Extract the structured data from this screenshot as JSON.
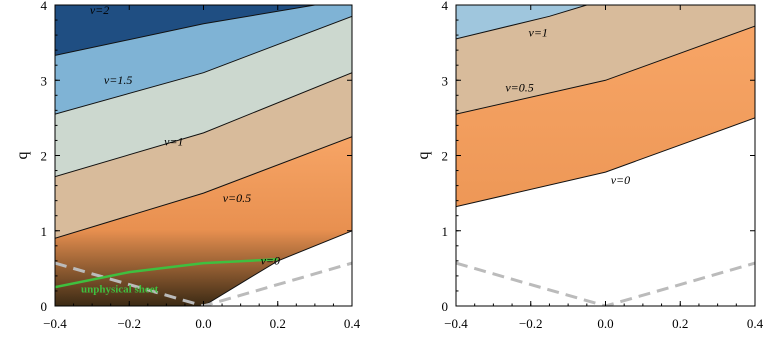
{
  "chart_data": [
    {
      "type": "contour",
      "xlim": [
        -0.4,
        0.4
      ],
      "ylim": [
        0,
        4
      ],
      "x_ticks": [
        "−0.4",
        "−0.2",
        "0.0",
        "0.2",
        "0.4"
      ],
      "y_ticks": [
        "0",
        "1",
        "2",
        "3",
        "4"
      ],
      "xlabel": "",
      "ylabel": "q",
      "contours": [
        {
          "label": "ν=0",
          "points": [
            [
              0.0,
              0.0
            ],
            [
              0.1,
              0.3
            ],
            [
              0.2,
              0.6
            ],
            [
              0.4,
              1.0
            ]
          ]
        },
        {
          "label": "ν=0.5",
          "points": [
            [
              -0.4,
              0.9
            ],
            [
              0.0,
              1.5
            ],
            [
              0.4,
              2.25
            ]
          ]
        },
        {
          "label": "ν=1",
          "points": [
            [
              -0.4,
              1.72
            ],
            [
              0.0,
              2.3
            ],
            [
              0.4,
              3.1
            ]
          ]
        },
        {
          "label": "ν=1.5",
          "points": [
            [
              -0.4,
              2.55
            ],
            [
              0.0,
              3.1
            ],
            [
              0.4,
              3.85
            ]
          ]
        },
        {
          "label": "ν=2",
          "points": [
            [
              -0.4,
              3.33
            ],
            [
              0.0,
              3.75
            ],
            [
              0.3,
              4.0
            ]
          ]
        }
      ],
      "contour_label_pos": {
        "ν=0": [
          0.18,
          0.55
        ],
        "ν=0.5": [
          0.09,
          1.38
        ],
        "ν=1": [
          -0.08,
          2.13
        ],
        "ν=1.5": [
          -0.23,
          2.95
        ],
        "ν=2": [
          -0.28,
          3.88
        ]
      },
      "bands": [
        {
          "between": [
            "floor",
            "ν=0"
          ],
          "color": "#1a1a12"
        },
        {
          "between": [
            "ν=0",
            "ν=0.5"
          ],
          "color": "#f5a262"
        },
        {
          "between": [
            "ν=0.5",
            "ν=1"
          ],
          "color": "#d8bb9b"
        },
        {
          "between": [
            "ν=1",
            "ν=1.5"
          ],
          "color": "#ccd8cf"
        },
        {
          "between": [
            "ν=1.5",
            "ν=2"
          ],
          "color": "#7fb3d5"
        },
        {
          "between": [
            "ν=2",
            "ceiling"
          ],
          "color": "#1f4e82"
        }
      ],
      "dashed_boundary": {
        "color": "#bbbbbb",
        "points": [
          [
            -0.4,
            0.57
          ],
          [
            0.0,
            0.0
          ],
          [
            0.4,
            0.57
          ]
        ]
      },
      "annotation": {
        "text": "unphysical sheet",
        "color": "#3fbf3f",
        "curve": [
          [
            -0.4,
            0.25
          ],
          [
            -0.2,
            0.45
          ],
          [
            0.0,
            0.57
          ],
          [
            0.2,
            0.62
          ]
        ]
      }
    },
    {
      "type": "contour",
      "xlim": [
        -0.4,
        0.4
      ],
      "ylim": [
        0,
        4
      ],
      "x_ticks": [
        "−0.4",
        "−0.2",
        "0.0",
        "0.2",
        "0.4"
      ],
      "y_ticks": [
        "0",
        "1",
        "2",
        "3",
        "4"
      ],
      "xlabel": "",
      "ylabel": "q",
      "contours": [
        {
          "label": "ν=0",
          "points": [
            [
              -0.4,
              1.32
            ],
            [
              0.0,
              1.78
            ],
            [
              0.4,
              2.5
            ]
          ]
        },
        {
          "label": "ν=0.5",
          "points": [
            [
              -0.4,
              2.55
            ],
            [
              0.0,
              3.0
            ],
            [
              0.4,
              3.72
            ]
          ]
        },
        {
          "label": "ν=1",
          "points": [
            [
              -0.4,
              3.55
            ],
            [
              -0.15,
              3.85
            ],
            [
              -0.05,
              4.0
            ]
          ]
        }
      ],
      "contour_label_pos": {
        "ν=0": [
          0.04,
          1.62
        ],
        "ν=0.5": [
          -0.23,
          2.85
        ],
        "ν=1": [
          -0.18,
          3.58
        ]
      },
      "bands": [
        {
          "between": [
            "floor",
            "ν=0"
          ],
          "color": "#ffffff"
        },
        {
          "between": [
            "ν=0",
            "ν=0.5"
          ],
          "color": "#f5a262"
        },
        {
          "between": [
            "ν=0.5",
            "ν=1"
          ],
          "color": "#d8bb9b"
        },
        {
          "between": [
            "ν=1",
            "ceiling"
          ],
          "color": "#9fc6dd"
        }
      ],
      "dashed_boundary": {
        "color": "#bbbbbb",
        "points": [
          [
            -0.4,
            0.57
          ],
          [
            0.0,
            0.0
          ],
          [
            0.4,
            0.57
          ]
        ]
      }
    }
  ]
}
